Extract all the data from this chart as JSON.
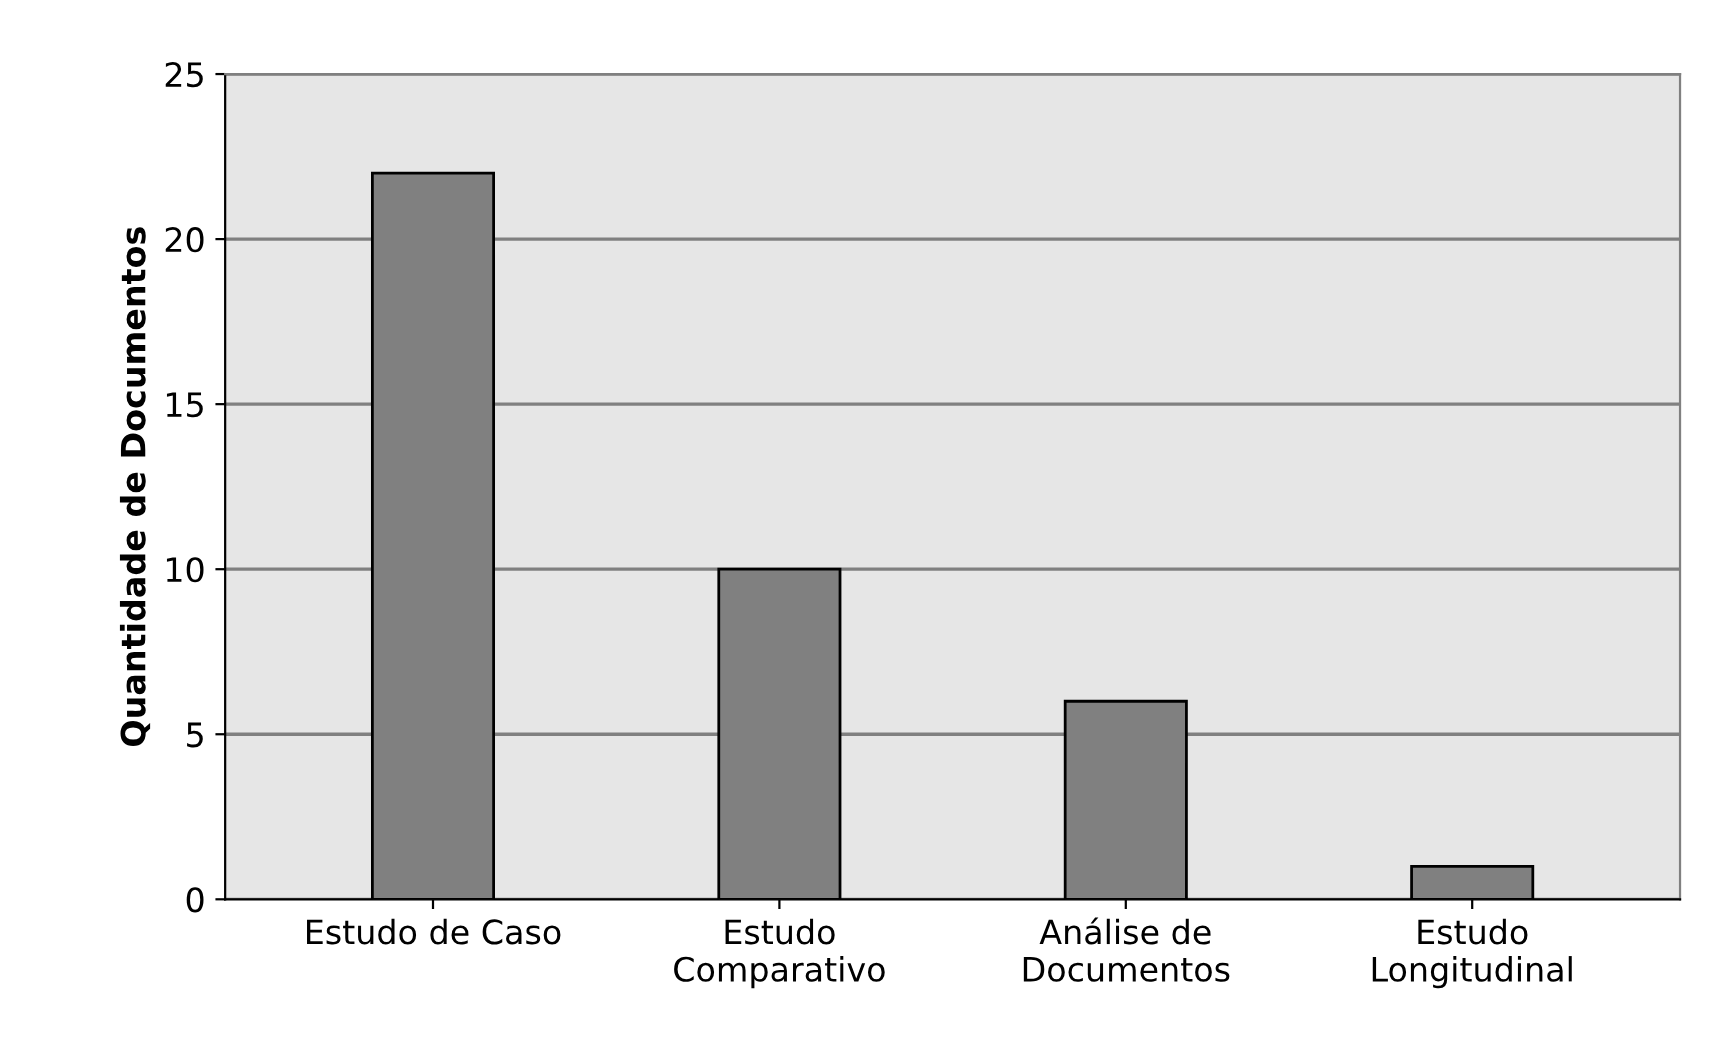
{
  "chart_data": {
    "type": "bar",
    "ylabel": "Quantidade de Documentos",
    "categories": [
      "Estudo de Caso",
      "Estudo\nComparativo",
      "Análise de\nDocumentos",
      "Estudo\nLongitudinal"
    ],
    "values": [
      22,
      10,
      6,
      1
    ],
    "color": "#808080",
    "ylim": [
      0,
      25
    ],
    "yticks": [
      0,
      5,
      10,
      15,
      20,
      25
    ],
    "grid": "y"
  }
}
